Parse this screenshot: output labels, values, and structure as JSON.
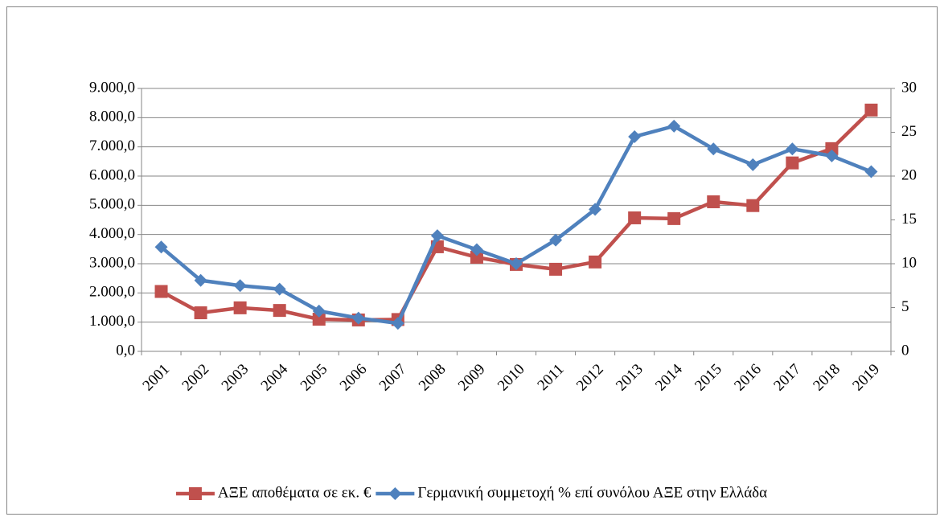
{
  "chart_data": {
    "type": "line",
    "categories": [
      "2001",
      "2002",
      "2003",
      "2004",
      "2005",
      "2006",
      "2007",
      "2008",
      "2009",
      "2010",
      "2011",
      "2012",
      "2013",
      "2014",
      "2015",
      "2016",
      "2017",
      "2018",
      "2019"
    ],
    "series": [
      {
        "name": "ΑΞΕ αποθέματα σε εκ. €",
        "color": "#c0504d",
        "marker": "square",
        "values": [
          2050,
          1320,
          1490,
          1400,
          1100,
          1075,
          1090,
          3580,
          3220,
          2975,
          2810,
          3060,
          4570,
          4545,
          5120,
          4990,
          6450,
          6940,
          8260
        ]
      },
      {
        "name": "Γερμανική συμμετοχή % επί συνόλου ΑΞΕ στην Ελλάδα",
        "color": "#4f81bd",
        "marker": "diamond",
        "axis": "y2",
        "values": [
          11.9,
          8.1,
          7.5,
          7.1,
          4.6,
          3.8,
          3.2,
          13.2,
          11.6,
          10.0,
          12.7,
          16.2,
          24.5,
          25.7,
          23.1,
          21.3,
          23.1,
          22.3,
          20.5
        ]
      }
    ],
    "ylim": [
      0,
      9000
    ],
    "yticks": [
      {
        "value": 0,
        "label": "0,0"
      },
      {
        "value": 1000,
        "label": "1.000,0"
      },
      {
        "value": 2000,
        "label": "2.000,0"
      },
      {
        "value": 3000,
        "label": "3.000,0"
      },
      {
        "value": 4000,
        "label": "4.000,0"
      },
      {
        "value": 5000,
        "label": "5.000,0"
      },
      {
        "value": 6000,
        "label": "6.000,0"
      },
      {
        "value": 7000,
        "label": "7.000,0"
      },
      {
        "value": 8000,
        "label": "8.000,0"
      },
      {
        "value": 9000,
        "label": "9.000,0"
      }
    ],
    "y2lim": [
      0,
      30
    ],
    "y2ticks": [
      0,
      5,
      10,
      15,
      20,
      25,
      30
    ],
    "grid": true,
    "legend": "bottom"
  }
}
